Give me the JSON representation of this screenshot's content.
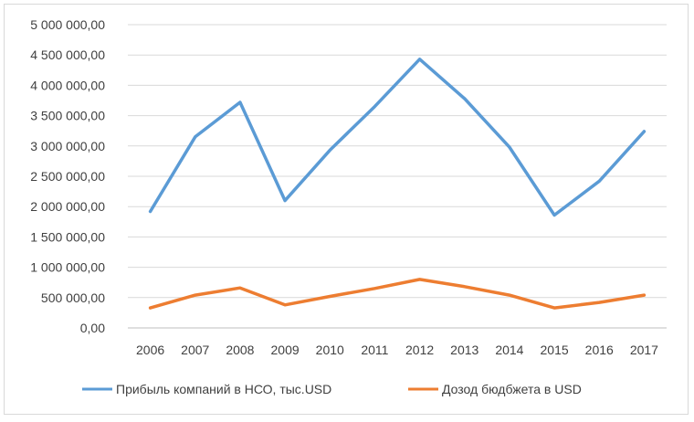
{
  "chart_data": {
    "type": "line",
    "title": "",
    "xlabel": "",
    "ylabel": "",
    "categories": [
      "2006",
      "2007",
      "2008",
      "2009",
      "2010",
      "2011",
      "2012",
      "2013",
      "2014",
      "2015",
      "2016",
      "2017"
    ],
    "ylim": [
      0,
      5000000
    ],
    "y_ticks": [
      0,
      500000,
      1000000,
      1500000,
      2000000,
      2500000,
      3000000,
      3500000,
      4000000,
      4500000,
      5000000
    ],
    "y_tick_labels": [
      "0,00",
      "500 000,00",
      "1 000 000,00",
      "1 500 000,00",
      "2 000 000,00",
      "2 500 000,00",
      "3 000 000,00",
      "3 500 000,00",
      "4 000 000,00",
      "4 500 000,00",
      "5 000 000,00"
    ],
    "grid": true,
    "legend_position": "bottom",
    "series": [
      {
        "name": "Прибыль компаний в НСО, тыс.USD",
        "color": "#5b9bd5",
        "values": [
          1920000,
          3150000,
          3720000,
          2100000,
          2930000,
          3650000,
          4430000,
          3780000,
          2980000,
          1860000,
          2420000,
          3240000
        ]
      },
      {
        "name": "Дозод бюдбжета в USD",
        "color": "#ed7d31",
        "values": [
          330000,
          540000,
          660000,
          380000,
          520000,
          650000,
          800000,
          680000,
          540000,
          330000,
          420000,
          540000
        ]
      }
    ]
  }
}
